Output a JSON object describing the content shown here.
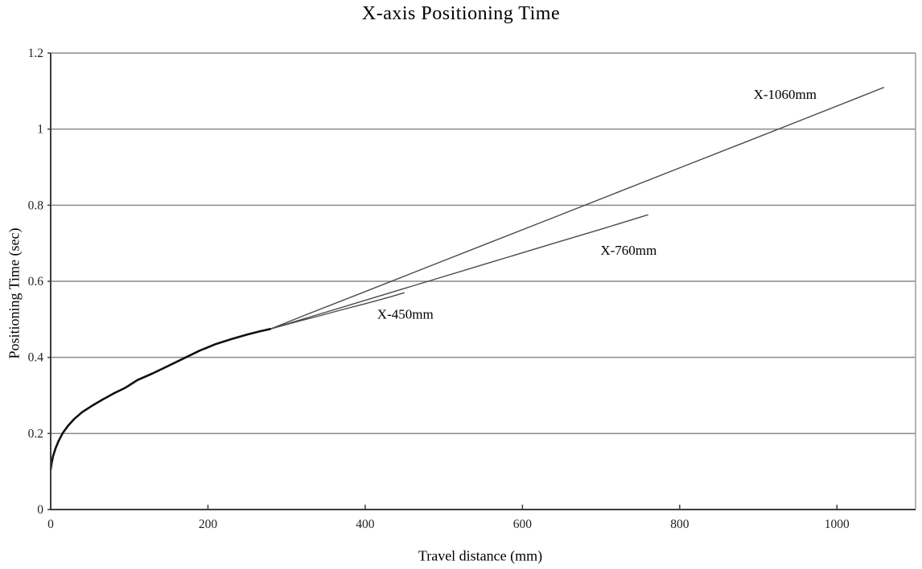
{
  "page": {
    "background": "#ffffff"
  },
  "chart_data": {
    "type": "line",
    "title": "X-axis Positioning Time",
    "xlabel": "Travel distance (mm)",
    "ylabel": "Positioning Time (sec)",
    "xlim": [
      0,
      1100
    ],
    "ylim": [
      0,
      1.2
    ],
    "grid": "horizontal gridlines at every 0.2 sec",
    "legend_position": "inline labels near line ends",
    "x_ticks": [
      {
        "v": 0,
        "label": "0"
      },
      {
        "v": 200,
        "label": "200"
      },
      {
        "v": 400,
        "label": "400"
      },
      {
        "v": 600,
        "label": "600"
      },
      {
        "v": 800,
        "label": "800"
      },
      {
        "v": 1000,
        "label": "1000"
      }
    ],
    "y_ticks": [
      {
        "v": 0,
        "label": "0"
      },
      {
        "v": 0.2,
        "label": "0.2"
      },
      {
        "v": 0.4,
        "label": "0.4"
      },
      {
        "v": 0.6,
        "label": "0.6"
      },
      {
        "v": 0.8,
        "label": "0.8"
      },
      {
        "v": 1,
        "label": "1"
      },
      {
        "v": 1.2,
        "label": "1.2"
      }
    ],
    "colors": {
      "curve_common": "#101010",
      "curve_branch": "#4a4a4a",
      "gridline": "#8a8a8a",
      "border": "#9a9a9a",
      "axis": "#3c3c3c",
      "tick_label": "#222222",
      "series_label": "#000000"
    },
    "common_curve": {
      "description": "shared acceleration portion of all three strokes (0 to 280 mm)",
      "points": [
        [
          0,
          0.105
        ],
        [
          1,
          0.12
        ],
        [
          3,
          0.14
        ],
        [
          6,
          0.16
        ],
        [
          10,
          0.18
        ],
        [
          15,
          0.2
        ],
        [
          22,
          0.22
        ],
        [
          30,
          0.238
        ],
        [
          40,
          0.256
        ],
        [
          52,
          0.272
        ],
        [
          65,
          0.288
        ],
        [
          80,
          0.305
        ],
        [
          95,
          0.32
        ],
        [
          110,
          0.34
        ],
        [
          130,
          0.358
        ],
        [
          150,
          0.378
        ],
        [
          170,
          0.398
        ],
        [
          190,
          0.418
        ],
        [
          210,
          0.435
        ],
        [
          230,
          0.448
        ],
        [
          250,
          0.46
        ],
        [
          265,
          0.468
        ],
        [
          280,
          0.475
        ]
      ]
    },
    "series": [
      {
        "id": "x450",
        "name": "X-450mm",
        "end_point": [
          450,
          0.57
        ],
        "label_anchor": {
          "x": 451,
          "y": 0.512
        },
        "points": [
          [
            310,
            0.492
          ],
          [
            340,
            0.508
          ],
          [
            370,
            0.525
          ],
          [
            400,
            0.541
          ],
          [
            430,
            0.558
          ],
          [
            450,
            0.57
          ]
        ]
      },
      {
        "id": "x760",
        "name": "X-760mm",
        "end_point": [
          760,
          0.775
        ],
        "label_anchor": {
          "x": 735,
          "y": 0.68
        },
        "points": [
          [
            320,
            0.5
          ],
          [
            400,
            0.55
          ],
          [
            480,
            0.6
          ],
          [
            560,
            0.65
          ],
          [
            640,
            0.7
          ],
          [
            700,
            0.737
          ],
          [
            760,
            0.775
          ]
        ]
      },
      {
        "id": "x1060",
        "name": "X-1060mm",
        "end_point": [
          1060,
          1.11
        ],
        "label_anchor": {
          "x": 934,
          "y": 1.09
        },
        "points": [
          [
            320,
            0.508
          ],
          [
            400,
            0.573
          ],
          [
            480,
            0.638
          ],
          [
            560,
            0.703
          ],
          [
            640,
            0.768
          ],
          [
            720,
            0.833
          ],
          [
            800,
            0.898
          ],
          [
            880,
            0.963
          ],
          [
            960,
            1.028
          ],
          [
            1020,
            1.077
          ],
          [
            1060,
            1.11
          ]
        ]
      }
    ]
  }
}
